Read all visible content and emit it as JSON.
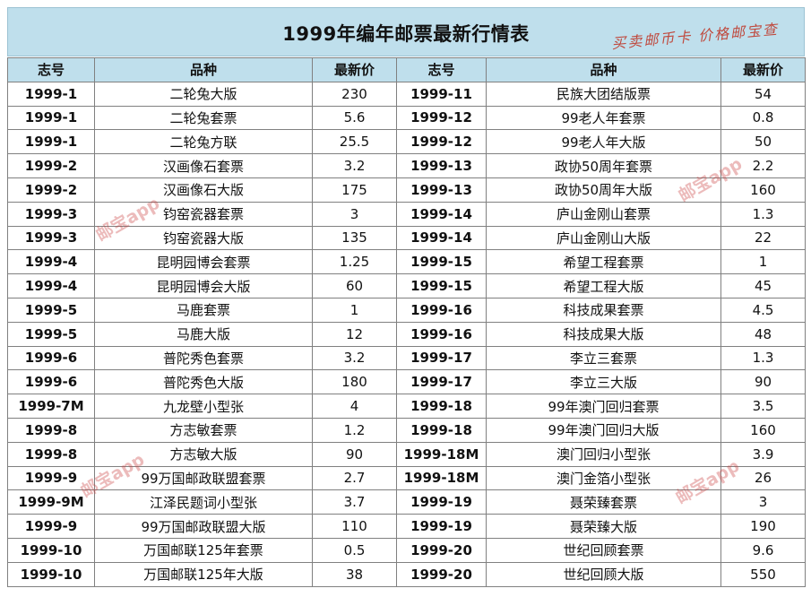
{
  "title": "1999年编年邮票最新行情表",
  "stamp": "买卖邮币卡  价格邮宝查",
  "watermark": "邮宝app",
  "headers": [
    "志号",
    "品种",
    "最新价",
    "志号",
    "品种",
    "最新价"
  ],
  "rows": [
    [
      "1999-1",
      "二轮兔大版",
      "230",
      "1999-11",
      "民族大团结版票",
      "54"
    ],
    [
      "1999-1",
      "二轮兔套票",
      "5.6",
      "1999-12",
      "99老人年套票",
      "0.8"
    ],
    [
      "1999-1",
      "二轮兔方联",
      "25.5",
      "1999-12",
      "99老人年大版",
      "50"
    ],
    [
      "1999-2",
      "汉画像石套票",
      "3.2",
      "1999-13",
      "政协50周年套票",
      "2.2"
    ],
    [
      "1999-2",
      "汉画像石大版",
      "175",
      "1999-13",
      "政协50周年大版",
      "160"
    ],
    [
      "1999-3",
      "钧窑瓷器套票",
      "3",
      "1999-14",
      "庐山金刚山套票",
      "1.3"
    ],
    [
      "1999-3",
      "钧窑瓷器大版",
      "135",
      "1999-14",
      "庐山金刚山大版",
      "22"
    ],
    [
      "1999-4",
      "昆明园博会套票",
      "1.25",
      "1999-15",
      "希望工程套票",
      "1"
    ],
    [
      "1999-4",
      "昆明园博会大版",
      "60",
      "1999-15",
      "希望工程大版",
      "45"
    ],
    [
      "1999-5",
      "马鹿套票",
      "1",
      "1999-16",
      "科技成果套票",
      "4.5"
    ],
    [
      "1999-5",
      "马鹿大版",
      "12",
      "1999-16",
      "科技成果大版",
      "48"
    ],
    [
      "1999-6",
      "普陀秀色套票",
      "3.2",
      "1999-17",
      "李立三套票",
      "1.3"
    ],
    [
      "1999-6",
      "普陀秀色大版",
      "180",
      "1999-17",
      "李立三大版",
      "90"
    ],
    [
      "1999-7M",
      "九龙壁小型张",
      "4",
      "1999-18",
      "99年澳门回归套票",
      "3.5"
    ],
    [
      "1999-8",
      "方志敏套票",
      "1.2",
      "1999-18",
      "99年澳门回归大版",
      "160"
    ],
    [
      "1999-8",
      "方志敏大版",
      "90",
      "1999-18M",
      "澳门回归小型张",
      "3.9"
    ],
    [
      "1999-9",
      "99万国邮政联盟套票",
      "2.7",
      "1999-18M",
      "澳门金箔小型张",
      "26"
    ],
    [
      "1999-9M",
      "江泽民题词小型张",
      "3.7",
      "1999-19",
      "聂荣臻套票",
      "3"
    ],
    [
      "1999-9",
      "99万国邮政联盟大版",
      "110",
      "1999-19",
      "聂荣臻大版",
      "190"
    ],
    [
      "1999-10",
      "万国邮联125年套票",
      "0.5",
      "1999-20",
      "世纪回顾套票",
      "9.6"
    ],
    [
      "1999-10",
      "万国邮联125年大版",
      "38",
      "1999-20",
      "世纪回顾大版",
      "550"
    ]
  ]
}
